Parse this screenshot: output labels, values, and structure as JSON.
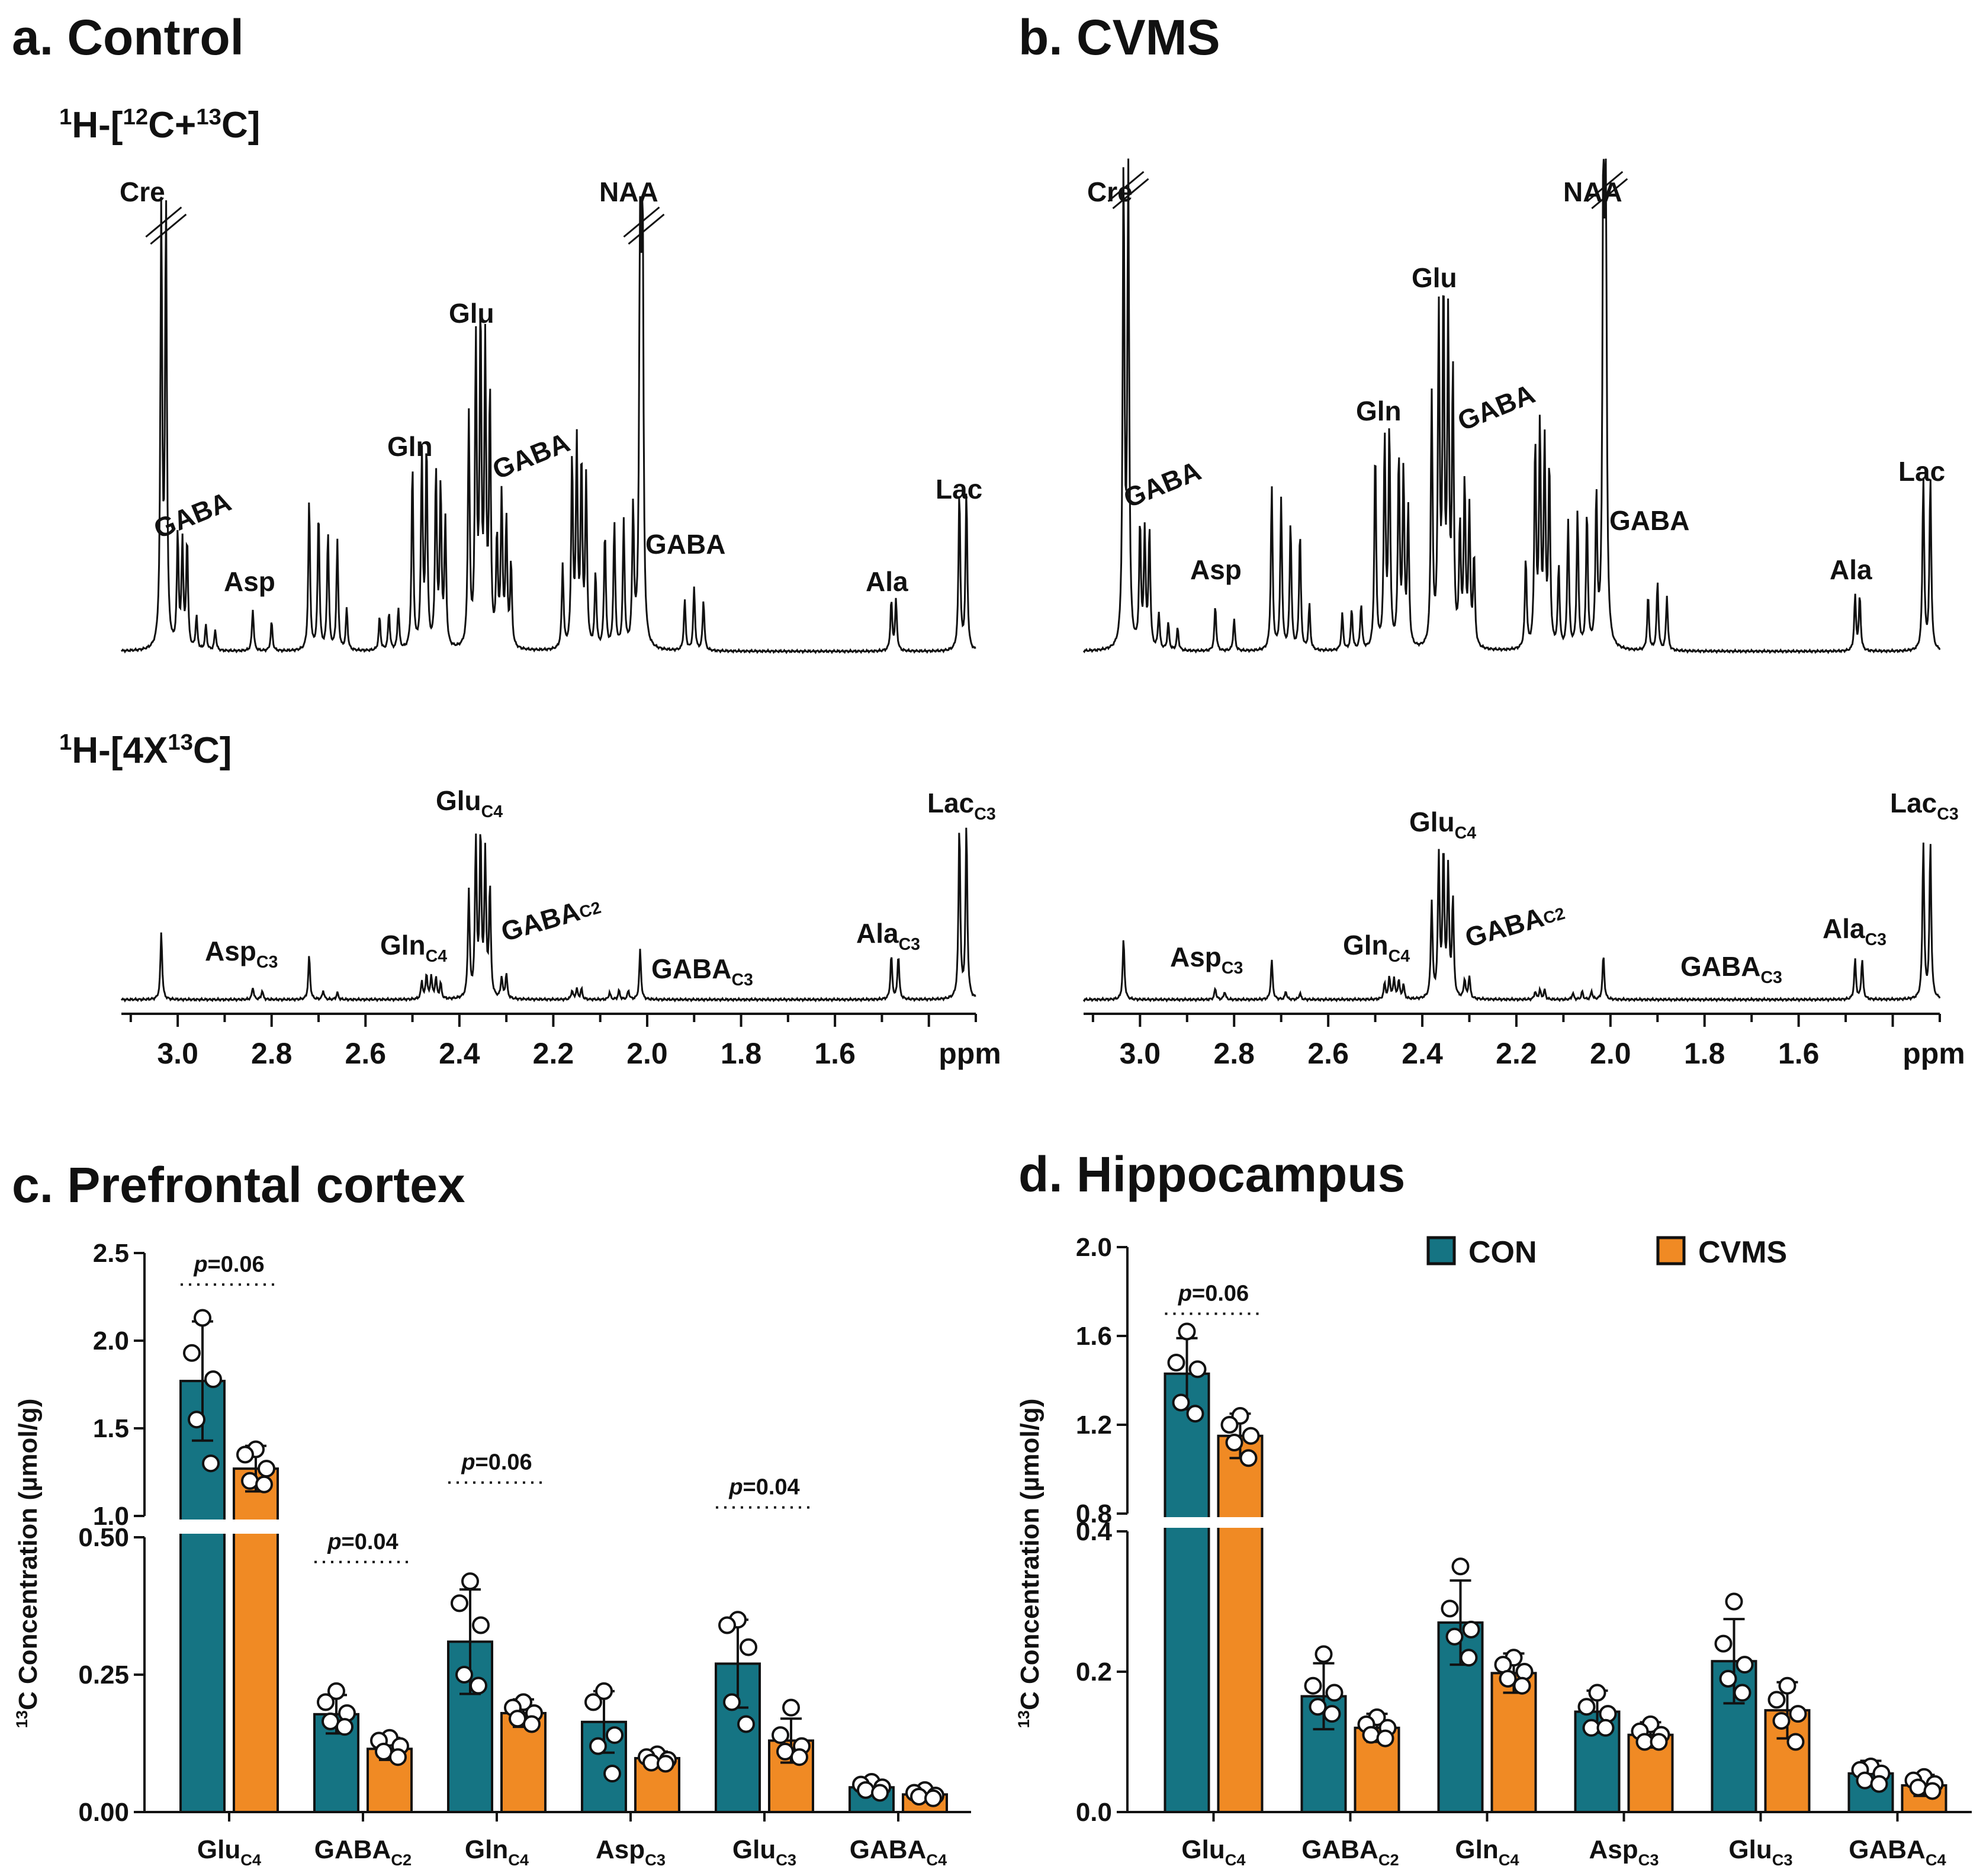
{
  "colors": {
    "con": "#157483",
    "cvms": "#f08a24",
    "ink": "#111111"
  },
  "spectra": {
    "unit": "ppm",
    "axis_ticks": [
      "3.0",
      "2.8",
      "2.6",
      "2.4",
      "2.2",
      "2.0",
      "1.8",
      "1.6"
    ],
    "row_titles": {
      "top": {
        "main": "1H-[12C+13C]",
        "pre": "H-[",
        "c12": "12",
        "mid": "C+",
        "c13": "13",
        "post": "C]",
        "one": "1"
      },
      "bottom": {
        "main": "1H-[4X13C]",
        "pre": "H-[4X",
        "c13": "13",
        "post": "C]",
        "one": "1"
      }
    },
    "panels": [
      {
        "title": "a. Control",
        "top_labels": [
          "Cre",
          "GABA",
          "Asp",
          "Gln",
          "Glu",
          "GABA",
          "NAA",
          "GABA",
          "Ala",
          "Lac"
        ],
        "bottom_labels": [
          {
            "base": "Asp",
            "sub": "C3"
          },
          {
            "base": "Gln",
            "sub": "C4"
          },
          {
            "base": "Glu",
            "sub": "C4"
          },
          {
            "base": "GABA",
            "sub": "C2"
          },
          {
            "base": "GABA",
            "sub": "C3"
          },
          {
            "base": "Ala",
            "sub": "C3"
          },
          {
            "base": "Lac",
            "sub": "C3"
          }
        ]
      },
      {
        "title": "b. CVMS",
        "top_labels": [
          "Cre",
          "GABA",
          "Asp",
          "Gln",
          "Glu",
          "GABA",
          "NAA",
          "GABA",
          "Ala",
          "Lac"
        ],
        "bottom_labels": [
          {
            "base": "Asp",
            "sub": "C3"
          },
          {
            "base": "Gln",
            "sub": "C4"
          },
          {
            "base": "Glu",
            "sub": "C4"
          },
          {
            "base": "GABA",
            "sub": "C2"
          },
          {
            "base": "GABA",
            "sub": "C3"
          },
          {
            "base": "Ala",
            "sub": "C3"
          },
          {
            "base": "Lac",
            "sub": "C3"
          }
        ]
      }
    ]
  },
  "chart_data": [
    {
      "type": "bar",
      "title": "c. Prefrontal cortex",
      "ylabel": "13C Concentration (µmol/g)",
      "ylabel_parts": {
        "sup": "13",
        "rest": "C Concentration (µmol/g)"
      },
      "ylim_lower": [
        0,
        0.5
      ],
      "ylim_upper": [
        1.0,
        2.5
      ],
      "yticks_lower": [
        "0.00",
        "0.25",
        "0.50"
      ],
      "yticks_upper": [
        "1.0",
        "1.5",
        "2.0",
        "2.5"
      ],
      "categories": [
        {
          "base": "Glu",
          "sub": "C4"
        },
        {
          "base": "GABA",
          "sub": "C2"
        },
        {
          "base": "Gln",
          "sub": "C4"
        },
        {
          "base": "Asp",
          "sub": "C3"
        },
        {
          "base": "Glu",
          "sub": "C3"
        },
        {
          "base": "GABA",
          "sub": "C4"
        }
      ],
      "series": [
        {
          "name": "CON",
          "values": [
            1.77,
            0.178,
            0.31,
            0.164,
            0.27,
            0.045
          ],
          "errors": [
            0.34,
            0.035,
            0.095,
            0.056,
            0.08,
            0.012
          ],
          "points": [
            [
              2.13,
              1.93,
              1.78,
              1.55,
              1.3
            ],
            [
              0.22,
              0.2,
              0.18,
              0.165,
              0.155
            ],
            [
              0.42,
              0.38,
              0.34,
              0.25,
              0.23
            ],
            [
              0.22,
              0.2,
              0.14,
              0.12,
              0.07
            ],
            [
              0.35,
              0.34,
              0.3,
              0.2,
              0.16
            ],
            [
              0.055,
              0.05,
              0.045,
              0.04,
              0.035
            ]
          ]
        },
        {
          "name": "CVMS",
          "values": [
            1.27,
            0.115,
            0.18,
            0.098,
            0.13,
            0.032
          ],
          "errors": [
            0.13,
            0.02,
            0.025,
            0.012,
            0.04,
            0.01
          ],
          "points": [
            [
              1.38,
              1.35,
              1.27,
              1.2,
              1.18
            ],
            [
              0.135,
              0.13,
              0.12,
              0.11,
              0.1
            ],
            [
              0.2,
              0.19,
              0.18,
              0.17,
              0.16
            ],
            [
              0.105,
              0.1,
              0.095,
              0.09,
              0.088
            ],
            [
              0.19,
              0.14,
              0.12,
              0.11,
              0.1
            ],
            [
              0.04,
              0.035,
              0.03,
              0.028,
              0.025
            ]
          ]
        }
      ],
      "annotations": [
        {
          "pair": 0,
          "level": 2.32,
          "stat": "p",
          "text": "=0.06"
        },
        {
          "pair": 1,
          "level": 0.455,
          "stat": "p",
          "text": "=0.04"
        },
        {
          "pair": 2,
          "level": 0.72,
          "stat": "p",
          "text": "=0.06"
        },
        {
          "pair": 4,
          "level": 0.62,
          "stat": "p",
          "text": "=0.04"
        }
      ]
    },
    {
      "type": "bar",
      "title": "d. Hippocampus",
      "ylabel": "13C Concentration (µmol/g)",
      "ylabel_parts": {
        "sup": "13",
        "rest": "C Concentration (µmol/g)"
      },
      "ylim_lower": [
        0,
        0.4
      ],
      "ylim_upper": [
        0.8,
        2.0
      ],
      "yticks_lower": [
        "0.0",
        "0.2",
        "0.4"
      ],
      "yticks_upper": [
        "0.8",
        "1.2",
        "1.6",
        "2.0"
      ],
      "categories": [
        {
          "base": "Glu",
          "sub": "C4"
        },
        {
          "base": "GABA",
          "sub": "C2"
        },
        {
          "base": "Gln",
          "sub": "C4"
        },
        {
          "base": "Asp",
          "sub": "C3"
        },
        {
          "base": "Glu",
          "sub": "C3"
        },
        {
          "base": "GABA",
          "sub": "C4"
        }
      ],
      "legend": {
        "position": "top-right",
        "entries": [
          "CON",
          "CVMS"
        ]
      },
      "series": [
        {
          "name": "CON",
          "values": [
            1.43,
            0.165,
            0.27,
            0.143,
            0.215,
            0.055
          ],
          "errors": [
            0.16,
            0.047,
            0.06,
            0.03,
            0.06,
            0.018
          ],
          "points": [
            [
              1.62,
              1.48,
              1.45,
              1.3,
              1.25
            ],
            [
              0.225,
              0.18,
              0.17,
              0.15,
              0.14
            ],
            [
              0.35,
              0.29,
              0.26,
              0.25,
              0.22
            ],
            [
              0.17,
              0.15,
              0.14,
              0.12,
              0.12
            ],
            [
              0.3,
              0.24,
              0.21,
              0.19,
              0.17
            ],
            [
              0.065,
              0.06,
              0.055,
              0.045,
              0.04
            ]
          ]
        },
        {
          "name": "CVMS",
          "values": [
            1.15,
            0.12,
            0.198,
            0.11,
            0.145,
            0.038
          ],
          "errors": [
            0.1,
            0.02,
            0.028,
            0.018,
            0.04,
            0.015
          ],
          "points": [
            [
              1.24,
              1.2,
              1.15,
              1.12,
              1.05
            ],
            [
              0.135,
              0.125,
              0.12,
              0.11,
              0.105
            ],
            [
              0.22,
              0.21,
              0.2,
              0.19,
              0.18
            ],
            [
              0.125,
              0.115,
              0.11,
              0.1,
              0.1
            ],
            [
              0.18,
              0.16,
              0.14,
              0.13,
              0.1
            ],
            [
              0.05,
              0.045,
              0.04,
              0.035,
              0.03
            ]
          ]
        }
      ],
      "annotations": [
        {
          "pair": 0,
          "level": 1.7,
          "stat": "p",
          "text": "=0.06"
        }
      ]
    }
  ]
}
